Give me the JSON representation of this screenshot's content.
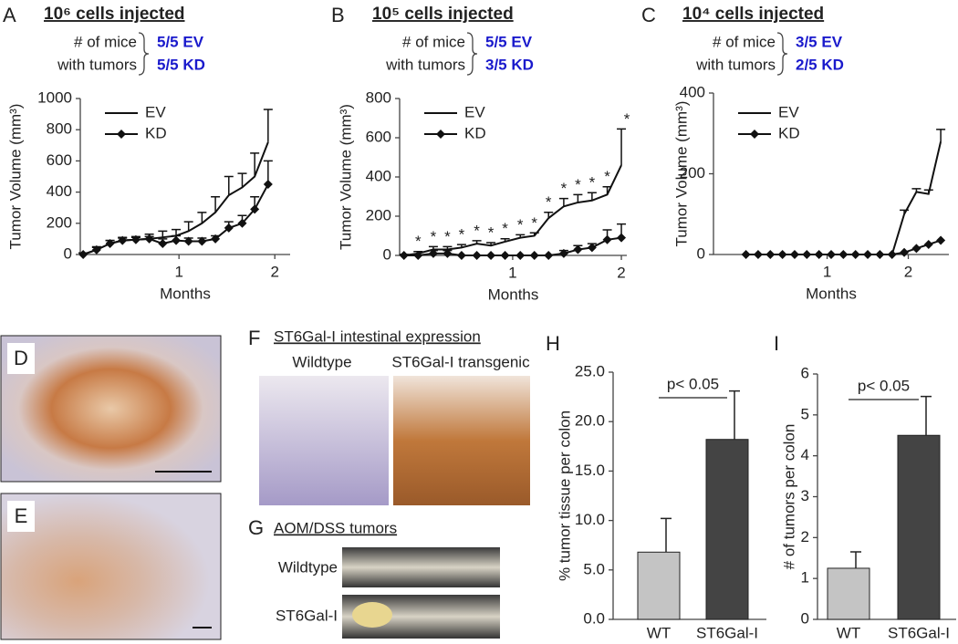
{
  "chart_data": [
    {
      "type": "line",
      "panel": "A",
      "title": "10⁶ cells injected",
      "mice_label": [
        "# of mice",
        "with tumors"
      ],
      "mice_counts": [
        "5/5 EV",
        "5/5 KD"
      ],
      "xlabel": "Months",
      "ylabel": "Tumor Volume (mm³)",
      "x": [
        0,
        0.14,
        0.28,
        0.41,
        0.55,
        0.69,
        0.83,
        0.97,
        1.1,
        1.24,
        1.38,
        1.52,
        1.66,
        1.79,
        1.93
      ],
      "xlim": [
        -0.03,
        2.16
      ],
      "xticks": [
        1,
        2
      ],
      "ylim": [
        0,
        1000
      ],
      "yticks": [
        0,
        200,
        400,
        600,
        800,
        1000
      ],
      "series": [
        {
          "name": "EV",
          "color": "#111111",
          "marker": "none",
          "values": [
            0,
            30,
            70,
            90,
            95,
            100,
            110,
            120,
            150,
            200,
            270,
            380,
            430,
            500,
            720
          ],
          "errors": [
            10,
            20,
            20,
            20,
            20,
            30,
            40,
            40,
            60,
            70,
            100,
            120,
            90,
            150,
            210
          ]
        },
        {
          "name": "KD",
          "color": "#111111",
          "marker": "diamond",
          "values": [
            0,
            30,
            70,
            90,
            95,
            100,
            70,
            90,
            85,
            85,
            100,
            170,
            200,
            290,
            450
          ],
          "errors": [
            10,
            15,
            20,
            15,
            15,
            15,
            30,
            30,
            20,
            20,
            20,
            40,
            50,
            80,
            150
          ]
        }
      ]
    },
    {
      "type": "line",
      "panel": "B",
      "title": "10⁵ cells injected",
      "mice_label": [
        "# of mice",
        "with tumors"
      ],
      "mice_counts": [
        "5/5 EV",
        "3/5 KD"
      ],
      "xlabel": "Months",
      "ylabel": "Tumor Volume (mm³)",
      "x": [
        0,
        0.13,
        0.27,
        0.4,
        0.53,
        0.67,
        0.8,
        0.93,
        1.07,
        1.2,
        1.33,
        1.47,
        1.6,
        1.73,
        1.87,
        2
      ],
      "xlim": [
        -0.04,
        2.05
      ],
      "xticks": [
        1,
        2
      ],
      "ylim": [
        0,
        800
      ],
      "yticks": [
        0,
        200,
        400,
        600,
        800
      ],
      "sig_labels": [
        null,
        "*",
        "*",
        "*",
        "*",
        "*",
        "*",
        "*",
        "*",
        "*",
        "*",
        "*",
        "*",
        "*",
        "*",
        "*"
      ],
      "series": [
        {
          "name": "EV",
          "color": "#111111",
          "marker": "none",
          "values": [
            0,
            10,
            30,
            30,
            40,
            60,
            50,
            70,
            90,
            100,
            190,
            250,
            270,
            280,
            310,
            460
          ],
          "errors": [
            5,
            10,
            15,
            15,
            15,
            15,
            15,
            15,
            15,
            15,
            30,
            40,
            40,
            40,
            40,
            185
          ]
        },
        {
          "name": "KD",
          "color": "#111111",
          "marker": "diamond",
          "values": [
            0,
            0,
            10,
            10,
            0,
            0,
            0,
            0,
            0,
            0,
            0,
            10,
            30,
            40,
            80,
            90
          ],
          "errors": [
            null,
            null,
            15,
            15,
            null,
            null,
            null,
            null,
            null,
            null,
            null,
            15,
            20,
            20,
            50,
            70
          ]
        }
      ]
    },
    {
      "type": "line",
      "panel": "C",
      "title": "10⁴ cells injected",
      "mice_label": [
        "# of mice",
        "with tumors"
      ],
      "mice_counts": [
        "3/5 EV",
        "2/5 KD"
      ],
      "xlabel": "Months",
      "ylabel": "Tumor Volume (mm³)",
      "x": [
        0,
        0.15,
        0.3,
        0.45,
        0.6,
        0.75,
        0.9,
        1.05,
        1.2,
        1.35,
        1.5,
        1.65,
        1.8,
        1.95,
        2.1,
        2.25,
        2.4
      ],
      "xlim": [
        -0.4,
        2.5
      ],
      "xticks": [
        1,
        2
      ],
      "ylim": [
        0,
        400
      ],
      "yticks": [
        0,
        200,
        400
      ],
      "series": [
        {
          "name": "EV",
          "color": "#111111",
          "marker": "none",
          "values": [
            0,
            0,
            0,
            0,
            0,
            0,
            0,
            0,
            0,
            0,
            0,
            0,
            0,
            100,
            155,
            150,
            280
          ],
          "errors": [
            null,
            null,
            null,
            null,
            null,
            null,
            null,
            null,
            null,
            null,
            null,
            null,
            null,
            10,
            8,
            10,
            30
          ]
        },
        {
          "name": "KD",
          "color": "#111111",
          "marker": "diamond",
          "values": [
            0,
            0,
            0,
            0,
            0,
            0,
            0,
            0,
            0,
            0,
            0,
            0,
            0,
            5,
            15,
            25,
            35
          ],
          "errors": [
            null,
            null,
            null,
            null,
            null,
            null,
            null,
            null,
            null,
            null,
            null,
            null,
            null,
            null,
            null,
            null,
            null
          ]
        }
      ]
    },
    {
      "type": "bar",
      "panel": "H",
      "ylabel": "% tumor tissue per colon",
      "categories": [
        "WT",
        "ST6Gal-I"
      ],
      "values": [
        6.8,
        18.2
      ],
      "errors": [
        3.4,
        4.9
      ],
      "colors": [
        "#c4c4c4",
        "#444444"
      ],
      "ylim": [
        0,
        25
      ],
      "yticks": [
        {
          "value": 0,
          "label": "0.0"
        },
        {
          "value": 5,
          "label": "5.0"
        },
        {
          "value": 10,
          "label": "10.0"
        },
        {
          "value": 15,
          "label": "15.0"
        },
        {
          "value": 20,
          "label": "20.0"
        },
        {
          "value": 25,
          "label": "25.0"
        }
      ],
      "annotation": "p< 0.05"
    },
    {
      "type": "bar",
      "panel": "I",
      "ylabel": "# of tumors per colon",
      "categories": [
        "WT",
        "ST6Gal-I"
      ],
      "values": [
        1.25,
        4.5
      ],
      "errors": [
        0.4,
        0.95
      ],
      "colors": [
        "#c4c4c4",
        "#444444"
      ],
      "ylim": [
        0,
        6
      ],
      "yticks": [
        0,
        1,
        2,
        3,
        4,
        5,
        6
      ],
      "annotation": "p< 0.05"
    }
  ],
  "image_panels": {
    "D": "D",
    "E": "E",
    "F": {
      "letter": "F",
      "title": "ST6Gal-I intestinal expression",
      "left": "Wildtype",
      "right": "ST6Gal-I transgenic"
    },
    "G": {
      "letter": "G",
      "title": "AOM/DSS tumors",
      "top": "Wildtype",
      "bottom": "ST6Gal-I"
    }
  }
}
